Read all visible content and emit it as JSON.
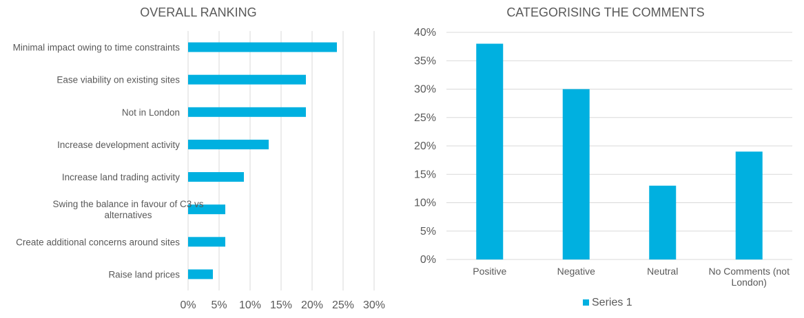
{
  "colors": {
    "bar": "#00B0E0",
    "grid": "#D9D9D9",
    "text": "#595959"
  },
  "chart_data": [
    {
      "type": "bar",
      "orientation": "horizontal",
      "title": "OVERALL RANKING",
      "categories": [
        "Minimal impact owing to time constraints",
        "Ease viability on existing sites",
        "Not in London",
        "Increase development activity",
        "Increase land trading activity",
        "Swing the balance in favour of C3 vs alternatives",
        "Create additional concerns around sites",
        "Raise land prices"
      ],
      "values": [
        0.24,
        0.19,
        0.19,
        0.13,
        0.09,
        0.06,
        0.06,
        0.04
      ],
      "xlim": [
        0,
        0.3
      ],
      "ticks": [
        "0%",
        "5%",
        "10%",
        "15%",
        "20%",
        "25%",
        "30%"
      ],
      "grid": "vertical",
      "legend": "none"
    },
    {
      "type": "bar",
      "orientation": "vertical",
      "title": "CATEGORISING THE COMMENTS",
      "categories": [
        "Positive",
        "Negative",
        "Neutral",
        "No Comments (not London)"
      ],
      "series": [
        {
          "name": "Series 1",
          "values": [
            0.38,
            0.3,
            0.13,
            0.19
          ]
        }
      ],
      "ylim": [
        0,
        0.4
      ],
      "ticks": [
        "0%",
        "5%",
        "10%",
        "15%",
        "20%",
        "25%",
        "30%",
        "35%",
        "40%"
      ],
      "grid": "horizontal",
      "legend": "bottom"
    }
  ]
}
